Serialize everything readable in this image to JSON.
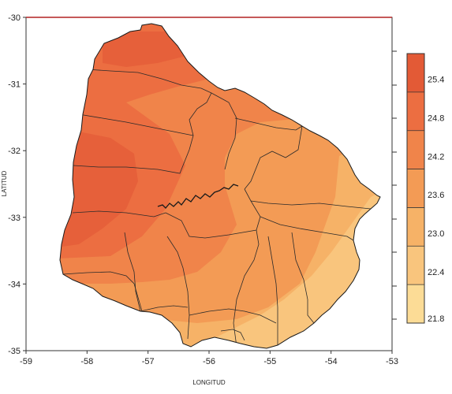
{
  "map": {
    "xlabel": "LONGITUD",
    "ylabel": "LATITUD",
    "x_ticks": [
      "-59",
      "-58",
      "-57",
      "-56",
      "-55",
      "-54",
      "-53"
    ],
    "y_ticks": [
      "-30",
      "-31",
      "-32",
      "-33",
      "-34",
      "-35"
    ],
    "xlim": [
      -59,
      -53
    ],
    "ylim": [
      -35,
      -30
    ]
  },
  "legend": {
    "labels": [
      "25.4",
      "24.8",
      "24.2",
      "23.6",
      "23.0",
      "22.4",
      "21.8"
    ],
    "colors": [
      "#e35a36",
      "#ec6e41",
      "#f0844a",
      "#f39b55",
      "#f6b267",
      "#f9c57d",
      "#fcdc96"
    ]
  },
  "colors": {
    "outline": "#1a1a1a",
    "boundary": "#2a2a2a",
    "frame": "#333333",
    "top_edge": "#b22222"
  }
}
